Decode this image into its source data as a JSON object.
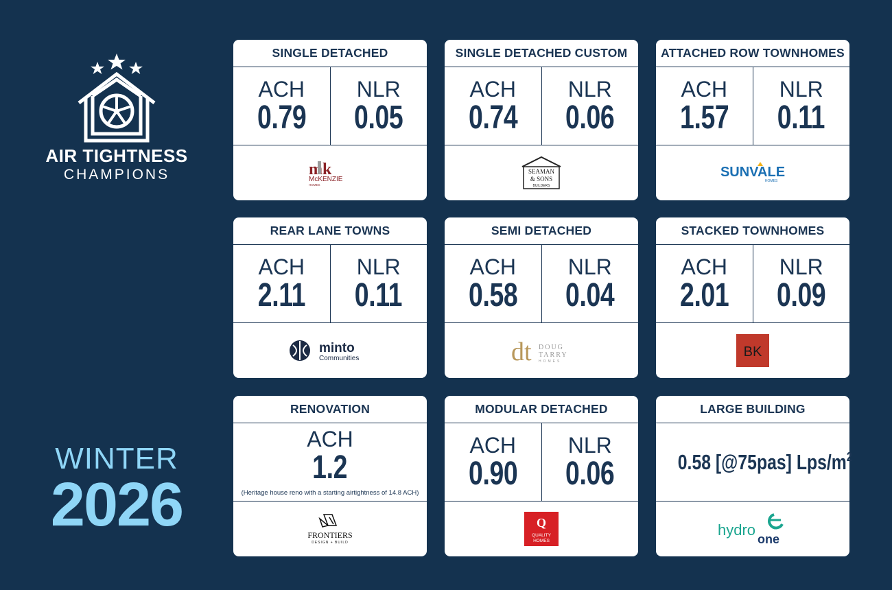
{
  "brand": {
    "title": "AIR TIGHTNESS",
    "subtitle": "CHAMPIONS",
    "icon": "house-fan-stars-icon"
  },
  "season": {
    "word": "WINTER",
    "year": "2026"
  },
  "colors": {
    "background": "#14324f",
    "accent": "#8fd6f7",
    "card": "#ffffff",
    "text": "#1b3553"
  },
  "cards": [
    {
      "title": "SINGLE DETACHED",
      "ach_label": "ACH",
      "ach": "0.79",
      "nlr_label": "NLR",
      "nlr": "0.05",
      "logo": {
        "icon": "mckenzie-homes-logo",
        "mark": "mk",
        "name": "McKENZIE",
        "tag": "HOMES"
      }
    },
    {
      "title": "SINGLE DETACHED CUSTOM",
      "ach_label": "ACH",
      "ach": "0.74",
      "nlr_label": "NLR",
      "nlr": "0.06",
      "logo": {
        "icon": "seaman-sons-builders-logo",
        "line1": "SEAMAN",
        "line2": "& SONS",
        "line3": "BUILDERS"
      }
    },
    {
      "title": "ATTACHED ROW TOWNHOMES",
      "ach_label": "ACH",
      "ach": "1.57",
      "nlr_label": "NLR",
      "nlr": "0.11",
      "logo": {
        "icon": "sunvale-homes-logo",
        "name": "SUNVALE",
        "tag": "HOMES"
      }
    },
    {
      "title": "REAR LANE TOWNS",
      "ach_label": "ACH",
      "ach": "2.11",
      "nlr_label": "NLR",
      "nlr": "0.11",
      "logo": {
        "icon": "minto-communities-logo",
        "name": "minto",
        "tag": "Communities"
      }
    },
    {
      "title": "SEMI DETACHED",
      "ach_label": "ACH",
      "ach": "0.58",
      "nlr_label": "NLR",
      "nlr": "0.04",
      "logo": {
        "icon": "doug-tarry-homes-logo",
        "mark": "dt",
        "line1": "DOUG",
        "line2": "TARRY",
        "line3": "HOMES"
      }
    },
    {
      "title": "STACKED TOWNHOMES",
      "ach_label": "ACH",
      "ach": "2.01",
      "nlr_label": "NLR",
      "nlr": "0.09",
      "logo": {
        "icon": "bk-logo",
        "mark": "BK"
      }
    },
    {
      "title": "RENOVATION",
      "ach_label": "ACH",
      "ach": "1.2",
      "note": "(Heritage house reno with a starting airtightness of 14.8 ACH)",
      "logo": {
        "icon": "frontiers-design-build-logo",
        "name": "FRONTIERS",
        "tag": "DESIGN + BUILD"
      }
    },
    {
      "title": "MODULAR DETACHED",
      "ach_label": "ACH",
      "ach": "0.90",
      "nlr_label": "NLR",
      "nlr": "0.06",
      "logo": {
        "icon": "quality-homes-logo",
        "mark": "Q",
        "line1": "QUALITY",
        "line2": "HOMES"
      }
    },
    {
      "title": "LARGE BUILDING",
      "metric_text": "0.58 [@75pas] Lps/m",
      "metric_sup": "2",
      "logo": {
        "icon": "hydro-one-logo",
        "line1": "hydro",
        "line2": "one"
      }
    }
  ]
}
